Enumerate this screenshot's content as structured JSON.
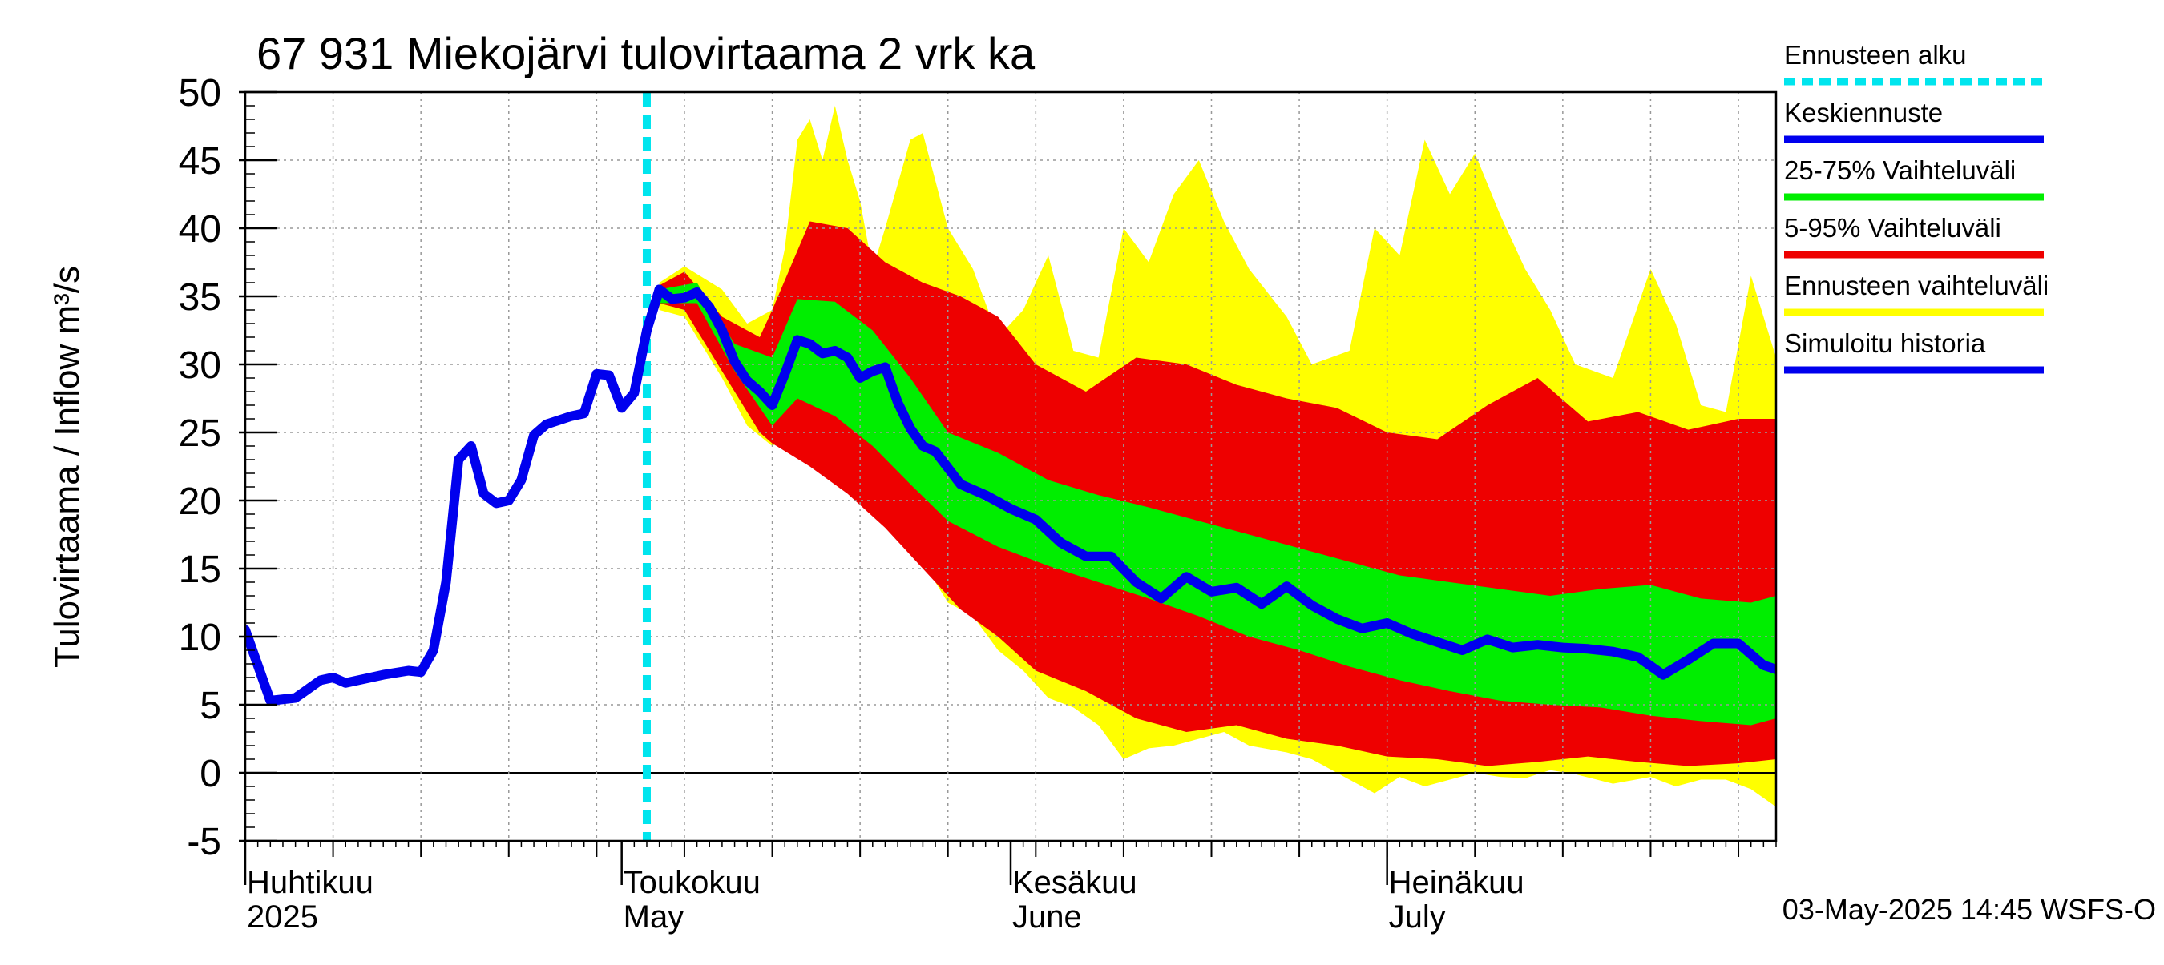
{
  "title": "67 931 Miekojärvi tulovirtaama 2 vrk ka",
  "ylabel": "Tulovirtaama / Inflow    m³/s",
  "footer": "03-May-2025 14:45 WSFS-O",
  "colors": {
    "forecast_start": "#00e5ee",
    "mean_forecast": "#0000ee",
    "band_25_75": "#00ee00",
    "band_5_95": "#ee0000",
    "band_full": "#ffff00",
    "history": "#0000ee",
    "grid": "#999999"
  },
  "legend": [
    {
      "label": "Ennusteen alku",
      "color": "#00e5ee",
      "style": "dashed"
    },
    {
      "label": "Keskiennuste",
      "color": "#0000ee",
      "style": "solid"
    },
    {
      "label": "25-75% Vaihteluväli",
      "color": "#00ee00",
      "style": "solid"
    },
    {
      "label": "5-95% Vaihteluväli",
      "color": "#ee0000",
      "style": "solid"
    },
    {
      "label": "Ennusteen vaihteluväli",
      "color": "#ffff00",
      "style": "solid"
    },
    {
      "label": "Simuloitu historia",
      "color": "#0000ee",
      "style": "solid"
    }
  ],
  "chart_data": {
    "type": "area",
    "title": "67 931 Miekojärvi tulovirtaama 2 vrk ka",
    "ylabel": "Tulovirtaama / Inflow    m³/s",
    "xlabel": "",
    "ylim": [
      -5,
      50
    ],
    "yticks": [
      -5,
      0,
      5,
      10,
      15,
      20,
      25,
      30,
      35,
      40,
      45,
      50
    ],
    "xlim": [
      "2025-04-01",
      "2025-08-01"
    ],
    "month_labels": [
      {
        "date": "2025-04-01",
        "line1": "Huhtikuu",
        "line2": "2025"
      },
      {
        "date": "2025-05-01",
        "line1": "Toukokuu",
        "line2": "May"
      },
      {
        "date": "2025-06-01",
        "line1": "Kesäkuu",
        "line2": "June"
      },
      {
        "date": "2025-07-01",
        "line1": "Heinäkuu",
        "line2": "July"
      }
    ],
    "forecast_start": "2025-05-03",
    "grid": true,
    "legend_position": "right",
    "history": [
      [
        "2025-04-01",
        10.5
      ],
      [
        "2025-04-03",
        5.3
      ],
      [
        "2025-04-05",
        5.5
      ],
      [
        "2025-04-07",
        6.8
      ],
      [
        "2025-04-08",
        7.0
      ],
      [
        "2025-04-09",
        6.6
      ],
      [
        "2025-04-11",
        7.0
      ],
      [
        "2025-04-12",
        7.2
      ],
      [
        "2025-04-14",
        7.5
      ],
      [
        "2025-04-15",
        7.4
      ],
      [
        "2025-04-16",
        9.0
      ],
      [
        "2025-04-17",
        14.0
      ],
      [
        "2025-04-18",
        23.0
      ],
      [
        "2025-04-19",
        24.0
      ],
      [
        "2025-04-20",
        20.5
      ],
      [
        "2025-04-21",
        19.8
      ],
      [
        "2025-04-22",
        20.0
      ],
      [
        "2025-04-23",
        21.5
      ],
      [
        "2025-04-24",
        24.8
      ],
      [
        "2025-04-25",
        25.6
      ],
      [
        "2025-04-26",
        25.9
      ],
      [
        "2025-04-27",
        26.2
      ],
      [
        "2025-04-28",
        26.4
      ],
      [
        "2025-04-29",
        29.3
      ],
      [
        "2025-04-30",
        29.2
      ],
      [
        "2025-05-01",
        26.8
      ],
      [
        "2025-05-02",
        27.9
      ],
      [
        "2025-05-03",
        32.5
      ],
      [
        "2025-05-04",
        35.5
      ]
    ],
    "series": [
      {
        "name": "Keskiennuste",
        "x": [
          "2025-05-04",
          "2025-05-05",
          "2025-05-06",
          "2025-05-07",
          "2025-05-08",
          "2025-05-09",
          "2025-05-10",
          "2025-05-11",
          "2025-05-12",
          "2025-05-13",
          "2025-05-14",
          "2025-05-15",
          "2025-05-16",
          "2025-05-17",
          "2025-05-18",
          "2025-05-19",
          "2025-05-20",
          "2025-05-21",
          "2025-05-22",
          "2025-05-23",
          "2025-05-24",
          "2025-05-25",
          "2025-05-26",
          "2025-05-28",
          "2025-05-30",
          "2025-06-01",
          "2025-06-03",
          "2025-06-05",
          "2025-06-07",
          "2025-06-09",
          "2025-06-11",
          "2025-06-13",
          "2025-06-15",
          "2025-06-17",
          "2025-06-19",
          "2025-06-21",
          "2025-06-23",
          "2025-06-25",
          "2025-06-27",
          "2025-06-29",
          "2025-07-01",
          "2025-07-03",
          "2025-07-05",
          "2025-07-07",
          "2025-07-09",
          "2025-07-11",
          "2025-07-13",
          "2025-07-15",
          "2025-07-17",
          "2025-07-19",
          "2025-07-21",
          "2025-07-23",
          "2025-07-25",
          "2025-07-27",
          "2025-07-29",
          "2025-07-31",
          "2025-08-01"
        ],
        "values": [
          35.5,
          34.8,
          34.9,
          35.3,
          34.2,
          32.5,
          30.2,
          28.8,
          28.0,
          27.0,
          29.3,
          31.8,
          31.5,
          30.8,
          31.0,
          30.5,
          29.0,
          29.5,
          29.8,
          27.2,
          25.3,
          24.0,
          23.6,
          21.2,
          20.4,
          19.4,
          18.6,
          16.9,
          15.9,
          15.9,
          14.0,
          12.8,
          14.4,
          13.3,
          13.6,
          12.4,
          13.7,
          12.3,
          11.3,
          10.6,
          11.0,
          10.2,
          9.6,
          9.0,
          9.8,
          9.2,
          9.4,
          9.2,
          9.1,
          8.9,
          8.5,
          7.2,
          8.3,
          9.5,
          9.5,
          7.9,
          7.6
        ]
      },
      {
        "name": "25-75% Vaihteluväli",
        "x": [
          "2025-05-04",
          "2025-05-07",
          "2025-05-10",
          "2025-05-13",
          "2025-05-15",
          "2025-05-18",
          "2025-05-21",
          "2025-05-24",
          "2025-05-27",
          "2025-05-31",
          "2025-06-04",
          "2025-06-08",
          "2025-06-12",
          "2025-06-16",
          "2025-06-20",
          "2025-06-24",
          "2025-06-28",
          "2025-07-02",
          "2025-07-06",
          "2025-07-10",
          "2025-07-14",
          "2025-07-18",
          "2025-07-22",
          "2025-07-26",
          "2025-07-30",
          "2025-08-01"
        ],
        "low": [
          34.5,
          34.5,
          29.5,
          25.5,
          27.5,
          26.2,
          24.0,
          21.2,
          18.5,
          16.6,
          15.2,
          14.0,
          12.8,
          11.5,
          10.0,
          9.0,
          7.8,
          6.8,
          6.0,
          5.3,
          5.0,
          4.8,
          4.2,
          3.8,
          3.5,
          4.0
        ],
        "high": [
          35.5,
          36.0,
          31.5,
          30.5,
          34.8,
          34.6,
          32.5,
          29.0,
          25.0,
          23.5,
          21.5,
          20.4,
          19.5,
          18.5,
          17.5,
          16.5,
          15.5,
          14.5,
          14.0,
          13.5,
          13.0,
          13.5,
          13.8,
          12.8,
          12.5,
          13.0
        ]
      },
      {
        "name": "5-95% Vaihteluväli",
        "x": [
          "2025-05-04",
          "2025-05-06",
          "2025-05-09",
          "2025-05-12",
          "2025-05-13",
          "2025-05-16",
          "2025-05-19",
          "2025-05-22",
          "2025-05-25",
          "2025-05-28",
          "2025-05-31",
          "2025-06-03",
          "2025-06-07",
          "2025-06-11",
          "2025-06-15",
          "2025-06-19",
          "2025-06-23",
          "2025-06-27",
          "2025-07-01",
          "2025-07-05",
          "2025-07-09",
          "2025-07-13",
          "2025-07-17",
          "2025-07-21",
          "2025-07-25",
          "2025-07-29",
          "2025-08-01"
        ],
        "low": [
          34.5,
          34.0,
          29.5,
          25.0,
          24.2,
          22.5,
          20.5,
          18.0,
          15.0,
          12.0,
          10.0,
          7.5,
          6.0,
          4.0,
          3.0,
          3.5,
          2.5,
          2.0,
          1.2,
          1.0,
          0.5,
          0.8,
          1.2,
          0.8,
          0.5,
          0.7,
          1.0
        ],
        "high": [
          35.8,
          36.8,
          33.5,
          32.0,
          34.0,
          40.5,
          40.0,
          37.5,
          36.0,
          35.0,
          33.5,
          30.0,
          28.0,
          30.5,
          30.0,
          28.5,
          27.5,
          26.8,
          25.0,
          24.5,
          27.0,
          29.0,
          25.8,
          26.5,
          25.2,
          26.0,
          26.0
        ]
      },
      {
        "name": "Ennusteen vaihteluväli",
        "x": [
          "2025-05-04",
          "2025-05-06",
          "2025-05-09",
          "2025-05-11",
          "2025-05-13",
          "2025-05-14",
          "2025-05-15",
          "2025-05-16",
          "2025-05-17",
          "2025-05-18",
          "2025-05-19",
          "2025-05-20",
          "2025-05-21",
          "2025-05-22",
          "2025-05-24",
          "2025-05-25",
          "2025-05-27",
          "2025-05-29",
          "2025-05-31",
          "2025-06-02",
          "2025-06-04",
          "2025-06-06",
          "2025-06-08",
          "2025-06-10",
          "2025-06-12",
          "2025-06-14",
          "2025-06-16",
          "2025-06-18",
          "2025-06-20",
          "2025-06-23",
          "2025-06-25",
          "2025-06-28",
          "2025-06-30",
          "2025-07-02",
          "2025-07-04",
          "2025-07-06",
          "2025-07-08",
          "2025-07-10",
          "2025-07-12",
          "2025-07-14",
          "2025-07-16",
          "2025-07-19",
          "2025-07-22",
          "2025-07-24",
          "2025-07-26",
          "2025-07-28",
          "2025-07-30",
          "2025-08-01"
        ],
        "low": [
          34.0,
          33.5,
          29.0,
          25.5,
          24.0,
          24.5,
          24.5,
          23.8,
          23.0,
          22.3,
          22.0,
          21.0,
          20.0,
          19.2,
          17.0,
          15.5,
          12.5,
          11.5,
          9.0,
          7.5,
          5.5,
          4.8,
          3.5,
          1.0,
          1.8,
          2.0,
          2.5,
          3.0,
          2.0,
          1.5,
          1.0,
          -0.5,
          -1.5,
          -0.3,
          -1.0,
          -0.5,
          0.0,
          -0.3,
          -0.4,
          0.2,
          -0.1,
          -0.8,
          -0.3,
          -1.0,
          -0.5,
          -0.5,
          -1.2,
          -2.5
        ],
        "high": [
          36.0,
          37.2,
          35.5,
          33.0,
          34.0,
          38.5,
          46.5,
          48.0,
          45.0,
          49.0,
          45.0,
          42.0,
          37.0,
          40.0,
          46.5,
          47.0,
          40.0,
          37.0,
          32.0,
          34.0,
          38.0,
          31.0,
          30.5,
          40.0,
          37.5,
          42.5,
          45.0,
          40.5,
          37.0,
          33.5,
          30.0,
          31.0,
          40.0,
          38.0,
          46.5,
          42.5,
          45.5,
          41.0,
          37.0,
          34.0,
          30.0,
          29.0,
          37.0,
          33.0,
          27.0,
          26.5,
          36.5,
          30.5
        ]
      }
    ]
  }
}
